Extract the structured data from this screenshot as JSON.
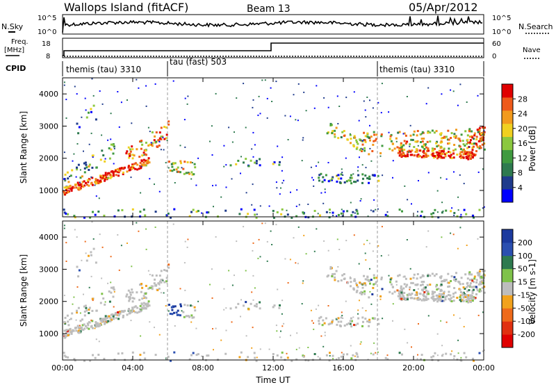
{
  "header": {
    "site": "Wallops Island (fitACF)",
    "beam": "Beam 13",
    "date": "05/Apr/2012"
  },
  "noise_panel": {
    "left_label": "N.Sky",
    "right_label": "N.Search",
    "left_ticks": [
      "10^5",
      "10^0"
    ],
    "right_ticks": [
      "10^5",
      "10^0"
    ]
  },
  "freq_panel": {
    "left_label_1": "Freq.",
    "left_label_2": "[MHz]",
    "right_label": "Nave",
    "left_ticks": [
      "18",
      "8"
    ],
    "right_ticks": [
      "60",
      "0"
    ]
  },
  "cpid_panel": {
    "label": "CPID",
    "segments": [
      {
        "label": "themis (tau) 3310",
        "start": "00:00"
      },
      {
        "label": "tau (fast) 503",
        "start": "06:00"
      },
      {
        "label": "themis (tau) 3310",
        "start": "18:00"
      }
    ]
  },
  "colors": {
    "power_scale": [
      "#0000ff",
      "#1f3b8c",
      "#2e7a4f",
      "#3f9a3f",
      "#8bc83f",
      "#f0d020",
      "#f29a1c",
      "#ee5a1a",
      "#e00000"
    ],
    "velocity_scale": [
      "#1b3a9e",
      "#2b4fb0",
      "#2e7a4f",
      "#7fc24a",
      "#bdbdbd",
      "#f2a21c",
      "#ee6a1a",
      "#e03010",
      "#e00000"
    ]
  },
  "chart_data": [
    {
      "type": "heatmap",
      "title": "",
      "xlabel": "",
      "ylabel": "Slant Range [km]",
      "x_ticks": [
        "00:00",
        "04:00",
        "08:00",
        "12:00",
        "16:00",
        "20:00",
        "00:00"
      ],
      "y_ticks": [
        "1000",
        "2000",
        "3000",
        "4000"
      ],
      "ylim": [
        180,
        4500
      ],
      "colorbar": {
        "label": "Power [dB]",
        "ticks": [
          "4",
          "8",
          "12",
          "16",
          "20",
          "24",
          "28"
        ]
      }
    },
    {
      "type": "heatmap",
      "title": "",
      "xlabel": "Time UT",
      "ylabel": "Slant Range [km]",
      "x_ticks": [
        "00:00",
        "04:00",
        "08:00",
        "12:00",
        "16:00",
        "20:00",
        "00:00"
      ],
      "y_ticks": [
        "1000",
        "2000",
        "3000",
        "4000"
      ],
      "ylim": [
        180,
        4500
      ],
      "colorbar": {
        "label": "Velocity [m s-1]",
        "ticks": [
          "200",
          "100",
          "50",
          "15",
          "-15",
          "-50",
          "-100",
          "-200"
        ]
      }
    }
  ]
}
